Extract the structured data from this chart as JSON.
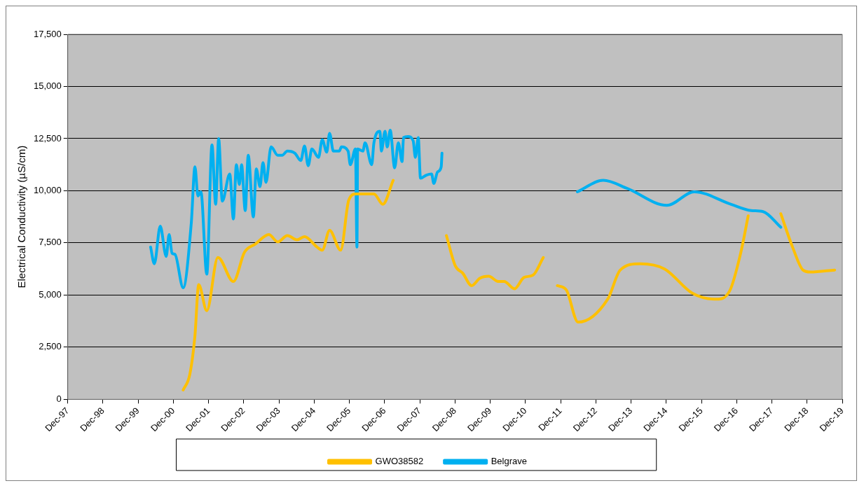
{
  "chart_data": {
    "type": "line",
    "ylabel": "Electrical Conductivity (µS/cm)",
    "ylim": [
      0,
      17500
    ],
    "yticks": [
      0,
      {
        "value": 2500,
        "label": "2,500"
      },
      {
        "value": 5000,
        "label": "5,000"
      },
      {
        "value": 7500,
        "label": "7,500"
      },
      {
        "value": 10000,
        "label": "10,000"
      },
      {
        "value": 12500,
        "label": "12,500"
      },
      {
        "value": 15000,
        "label": "15,000"
      },
      {
        "value": 17500,
        "label": "17,500"
      }
    ],
    "xlim": [
      "1997-12-01",
      "2019-12-01"
    ],
    "xticks": [
      {
        "value": "1997-12-01",
        "label": "Dec-97"
      },
      {
        "value": "1998-12-01",
        "label": "Dec-98"
      },
      {
        "value": "1999-12-01",
        "label": "Dec-99"
      },
      {
        "value": "2000-12-01",
        "label": "Dec-00"
      },
      {
        "value": "2001-12-01",
        "label": "Dec-01"
      },
      {
        "value": "2002-12-01",
        "label": "Dec-02"
      },
      {
        "value": "2003-12-01",
        "label": "Dec-03"
      },
      {
        "value": "2004-12-01",
        "label": "Dec-04"
      },
      {
        "value": "2005-12-01",
        "label": "Dec-05"
      },
      {
        "value": "2006-12-01",
        "label": "Dec-06"
      },
      {
        "value": "2007-12-01",
        "label": "Dec-07"
      },
      {
        "value": "2008-12-01",
        "label": "Dec-08"
      },
      {
        "value": "2009-12-01",
        "label": "Dec-09"
      },
      {
        "value": "2010-12-01",
        "label": "Dec-10"
      },
      {
        "value": "2011-12-01",
        "label": "Dec-11"
      },
      {
        "value": "2012-12-01",
        "label": "Dec-12"
      },
      {
        "value": "2013-12-01",
        "label": "Dec-13"
      },
      {
        "value": "2014-12-01",
        "label": "Dec-14"
      },
      {
        "value": "2015-12-01",
        "label": "Dec-15"
      },
      {
        "value": "2016-12-01",
        "label": "Dec-16"
      },
      {
        "value": "2017-12-01",
        "label": "Dec-17"
      },
      {
        "value": "2018-12-01",
        "label": "Dec-18"
      },
      {
        "value": "2019-12-01",
        "label": "Dec-19"
      }
    ],
    "grid": "y",
    "legend": "bottom",
    "marker": "none",
    "line_style": "solid",
    "series": [
      {
        "name": "GWO38582",
        "color": "#ffc000",
        "x": [
          "2001-03-12",
          "2001-05-20",
          "2001-07-12",
          "2001-08-20",
          "2001-11-12",
          "2002-03-07",
          "2002-08-15",
          "2002-12-08",
          "2003-04-02",
          "2003-08-18",
          "2003-11-18",
          "2004-02-26",
          "2004-06-05",
          "2004-08-22",
          "2004-12-30",
          "2005-02-22",
          "2005-05-09",
          "2005-09-01",
          "2005-11-24",
          "2006-02-09",
          "2006-08-12",
          "2006-11-12",
          "2007-02-28",
          "2008-01-01",
          "2008-09-02",
          "2008-12-03",
          "2009-02-18",
          "2009-05-22",
          "2009-08-14",
          "2009-11-14",
          "2010-02-22",
          "2010-04-24",
          "2010-08-09",
          "2010-11-17",
          "2011-02-17",
          "2011-06-04",
          "2011-08-01",
          "2011-10-28",
          "2012-01-28",
          "2012-05-30",
          "2013-04-02",
          "2013-08-11",
          "2014-03-06",
          "2014-11-14",
          "2015-08-25",
          "2016-05-04",
          "2016-09-19",
          "2017-01-13",
          "2017-03-30",
          "2017-09-01",
          "2018-03-03",
          "2018-07-03",
          "2018-10-19",
          "2019-01-03",
          "2019-09-13"
        ],
        "values": [
          450,
          1200,
          3050,
          5500,
          4250,
          6800,
          5650,
          7050,
          7450,
          7900,
          7550,
          7850,
          7650,
          7800,
          7300,
          7150,
          8100,
          7150,
          9550,
          9850,
          9850,
          9350,
          10500,
          null,
          7850,
          6400,
          6050,
          5450,
          5800,
          5900,
          5650,
          5650,
          5300,
          5850,
          5950,
          6800,
          null,
          5450,
          5250,
          3700,
          4800,
          6200,
          6500,
          6250,
          5100,
          4800,
          5200,
          7050,
          8800,
          null,
          8900,
          7300,
          6200,
          6100,
          6200
        ]
      },
      {
        "name": "Belgrave",
        "color": "#00b0f0",
        "x": [
          "2000-04-08",
          "2000-05-17",
          "2000-07-17",
          "2000-09-17",
          "2000-10-17",
          "2000-11-17",
          "2000-12-17",
          "2001-03-12",
          "2001-06-04",
          "2001-07-12",
          "2001-08-12",
          "2001-09-12",
          "2001-11-12",
          "2002-01-05",
          "2002-02-12",
          "2002-03-15",
          "2002-04-22",
          "2002-07-08",
          "2002-08-15",
          "2002-09-15",
          "2002-10-16",
          "2002-11-08",
          "2002-12-16",
          "2003-01-16",
          "2003-03-10",
          "2003-04-10",
          "2003-05-18",
          "2003-06-18",
          "2003-07-19",
          "2003-09-10",
          "2003-11-18",
          "2004-01-03",
          "2004-02-26",
          "2004-05-14",
          "2004-07-14",
          "2004-08-22",
          "2004-09-29",
          "2004-11-06",
          "2005-01-14",
          "2005-02-22",
          "2005-04-09",
          "2005-05-09",
          "2005-06-17",
          "2005-08-17",
          "2005-09-09",
          "2005-11-17",
          "2005-12-10",
          "2006-02-01",
          "2006-02-17",
          "2006-02-24",
          "2006-04-19",
          "2006-05-12",
          "2006-07-20",
          "2006-08-12",
          "2006-10-13",
          "2006-10-28",
          "2006-12-05",
          "2006-12-28",
          "2007-01-28",
          "2007-03-15",
          "2007-04-22",
          "2007-05-31",
          "2007-06-15",
          "2007-07-31",
          "2007-09-23",
          "2007-10-16",
          "2007-11-15",
          "2007-12-08",
          "2008-02-08",
          "2008-04-01",
          "2008-04-24",
          "2008-06-02",
          "2008-07-10",
          "2008-07-18",
          "2010-01-01",
          "2012-05-23",
          "2013-02-15",
          "2013-10-26",
          "2014-12-07",
          "2015-09-17",
          "2016-10-04",
          "2017-04-30",
          "2017-08-31",
          "2018-03-03"
        ],
        "values": [
          7300,
          6500,
          8300,
          6850,
          7900,
          7000,
          6950,
          5350,
          8450,
          11150,
          9750,
          9950,
          6000,
          12200,
          9350,
          12500,
          9500,
          10800,
          8650,
          11250,
          10300,
          11250,
          9050,
          11700,
          8750,
          11050,
          10200,
          11350,
          10400,
          12100,
          11700,
          11700,
          11900,
          11800,
          11450,
          12150,
          11200,
          12000,
          11600,
          12450,
          11850,
          12750,
          11900,
          11900,
          12100,
          11900,
          11250,
          12000,
          7300,
          12000,
          11900,
          12300,
          11250,
          12300,
          12850,
          11900,
          12850,
          12100,
          12900,
          11100,
          12300,
          11400,
          12550,
          12600,
          12400,
          11600,
          12550,
          10600,
          10750,
          10800,
          10350,
          10900,
          11150,
          11800,
          null,
          9950,
          10500,
          10100,
          9300,
          9950,
          9350,
          9050,
          9000,
          8250
        ]
      }
    ]
  }
}
